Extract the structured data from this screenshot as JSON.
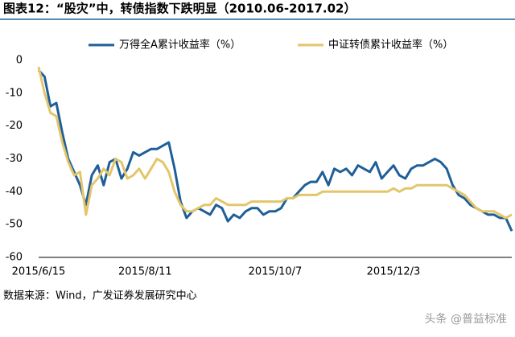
{
  "chart_data": {
    "type": "line",
    "title": "图表12：“股灾”中，转债指数下跌明显（2010.06-2017.02）",
    "source": "数据来源：Wind，广发证券发展研究中心",
    "watermark": "头条 @普益标准",
    "categories": [
      "2015/6/15",
      null,
      null,
      null,
      null,
      null,
      null,
      null,
      null,
      null,
      null,
      null,
      null,
      null,
      null,
      null,
      null,
      null,
      "2015/8/11",
      null,
      null,
      null,
      null,
      null,
      null,
      null,
      null,
      null,
      null,
      null,
      null,
      null,
      null,
      null,
      null,
      null,
      null,
      null,
      null,
      null,
      "2015/10/7",
      null,
      null,
      null,
      null,
      null,
      null,
      null,
      null,
      null,
      null,
      null,
      null,
      null,
      null,
      null,
      null,
      null,
      null,
      null,
      "2015/12/3",
      null,
      null,
      null,
      null,
      null,
      null,
      null,
      null,
      null,
      null,
      null,
      null,
      null,
      null,
      null,
      null,
      null,
      null,
      null,
      null
    ],
    "series": [
      {
        "name": "万得全A累计收益率（%）",
        "color": "#1f5f99",
        "values": [
          -3,
          -5,
          -14,
          -13,
          -22,
          -30,
          -34,
          -38,
          -44,
          -35,
          -32,
          -38,
          -31,
          -30,
          -36,
          -33,
          -28,
          -29,
          -28,
          -27,
          -27,
          -26,
          -25,
          -33,
          -43,
          -48,
          -46,
          -45,
          -46,
          -47,
          -44,
          -45,
          -49,
          -47,
          -48,
          -46,
          -45,
          -45,
          -47,
          -46,
          -46,
          -45,
          -42,
          -42,
          -40,
          -38,
          -37,
          -37,
          -34,
          -38,
          -33,
          -34,
          -33,
          -35,
          -32,
          -33,
          -34,
          -31,
          -36,
          -34,
          -32,
          -35,
          -36,
          -33,
          -32,
          -32,
          -31,
          -30,
          -31,
          -33,
          -38,
          -41,
          -42,
          -44,
          -45,
          -46,
          -47,
          -47,
          -48,
          -48,
          -52
        ]
      },
      {
        "name": "中证转债累计收益率（%）",
        "color": "#e3c66a",
        "values": [
          -2,
          -10,
          -16,
          -17,
          -25,
          -31,
          -35,
          -34,
          -47,
          -38,
          -36,
          -33,
          -35,
          -30,
          -31,
          -36,
          -35,
          -33,
          -36,
          -33,
          -30,
          -31,
          -34,
          -40,
          -44,
          -46,
          -46,
          -45,
          -44,
          -44,
          -42,
          -43,
          -44,
          -44,
          -44,
          -44,
          -43,
          -43,
          -43,
          -43,
          -43,
          -43,
          -42,
          -42,
          -41,
          -41,
          -41,
          -41,
          -40,
          -40,
          -40,
          -40,
          -40,
          -40,
          -40,
          -40,
          -40,
          -40,
          -40,
          -40,
          -39,
          -40,
          -39,
          -39,
          -38,
          -38,
          -38,
          -38,
          -38,
          -38,
          -39,
          -40,
          -41,
          -43,
          -45,
          -46,
          -46,
          -46,
          -47,
          -48,
          -47
        ]
      }
    ],
    "ylim": [
      -60,
      0
    ],
    "yticks": [
      0,
      -10,
      -20,
      -30,
      -40,
      -50,
      -60
    ],
    "grid": false,
    "legend": "top"
  }
}
